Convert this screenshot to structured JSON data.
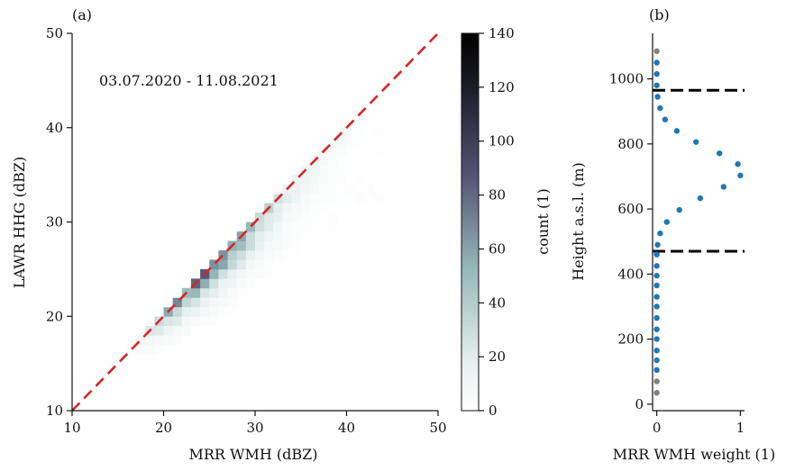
{
  "chart_data": [
    {
      "panel": "(a)",
      "type": "heatmap",
      "annotation": "03.07.2020 - 11.08.2021",
      "xlabel": "MRR WMH (dBZ)",
      "ylabel": "LAWR HHG (dBZ)",
      "xlim": [
        10,
        50
      ],
      "ylim": [
        10,
        50
      ],
      "xticks": [
        10,
        20,
        30,
        40,
        50
      ],
      "yticks": [
        10,
        20,
        30,
        40,
        50
      ],
      "bin_width": 1,
      "reference_line": {
        "type": "1:1",
        "color": "#d62728",
        "style": "dashed"
      },
      "colorbar": {
        "label": "count (1)",
        "range": [
          0,
          140
        ],
        "ticks": [
          0,
          20,
          40,
          60,
          80,
          100,
          120,
          140
        ],
        "colormap": "bone_r"
      },
      "ridge": [
        [
          10,
          0
        ],
        [
          16,
          10
        ],
        [
          17,
          25
        ],
        [
          18,
          55
        ],
        [
          19,
          95
        ],
        [
          20,
          125
        ],
        [
          22,
          138
        ],
        [
          24,
          140
        ],
        [
          26,
          125
        ],
        [
          28,
          95
        ],
        [
          30,
          60
        ],
        [
          32,
          38
        ],
        [
          34,
          22
        ],
        [
          36,
          12
        ],
        [
          38,
          6
        ],
        [
          40,
          2
        ],
        [
          41,
          0
        ]
      ],
      "ridge_center": {
        "at_x10": 4.5,
        "slope": 0.955
      }
    },
    {
      "panel": "(b)",
      "type": "scatter",
      "xlabel": "MRR WMH weight (1)",
      "ylabel": "Height a.s.l. (m)",
      "xlim": [
        -0.05,
        1.05
      ],
      "ylim": [
        -20,
        1140
      ],
      "xticks": [
        0,
        1
      ],
      "yticks": [
        0,
        200,
        400,
        600,
        800,
        1000
      ],
      "hlines": [
        {
          "y": 965,
          "color": "#000000",
          "style": "dashed"
        },
        {
          "y": 470,
          "color": "#000000",
          "style": "dashed"
        }
      ],
      "series": [
        {
          "color": "#808080",
          "points": [
            [
              0,
              35
            ],
            [
              0,
              70
            ],
            [
              0,
              1085
            ]
          ]
        },
        {
          "color": "#1f77b4",
          "points": [
            [
              0,
              105
            ],
            [
              0,
              135
            ],
            [
              0,
              165
            ],
            [
              0,
              200
            ],
            [
              0,
              230
            ],
            [
              0,
              265
            ],
            [
              0,
              300
            ],
            [
              0,
              330
            ],
            [
              0,
              365
            ],
            [
              0,
              395
            ],
            [
              0,
              425
            ],
            [
              0,
              460
            ],
            [
              0.01,
              490
            ],
            [
              0.04,
              525
            ],
            [
              0.12,
              560
            ],
            [
              0.27,
              597
            ],
            [
              0.52,
              633
            ],
            [
              0.8,
              668
            ],
            [
              1.0,
              703
            ],
            [
              0.97,
              738
            ],
            [
              0.75,
              771
            ],
            [
              0.47,
              806
            ],
            [
              0.24,
              840
            ],
            [
              0.1,
              875
            ],
            [
              0.04,
              910
            ],
            [
              0.01,
              945
            ],
            [
              0,
              980
            ],
            [
              0,
              1015
            ],
            [
              0,
              1050
            ]
          ]
        }
      ]
    }
  ]
}
